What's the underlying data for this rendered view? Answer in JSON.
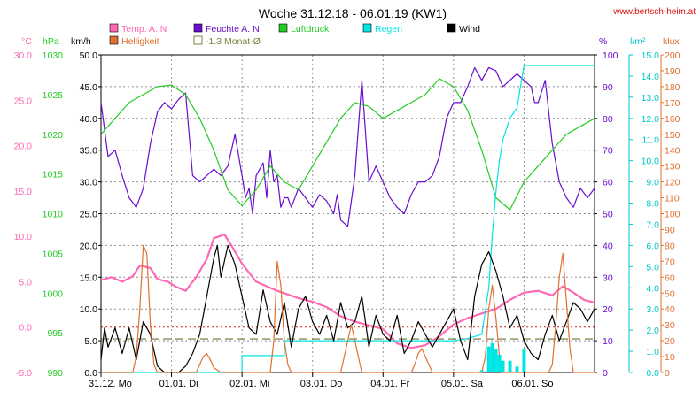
{
  "chart_data": {
    "type": "line",
    "title": "Woche 31.12.18 - 06.01.19 (KW1)",
    "source_label": "www.bertsch-heim.at",
    "x_days": [
      "31.12. Mo",
      "01.01. Di",
      "02.01. Mi",
      "03.01. Do",
      "04.01. Fr",
      "05.01. Sa",
      "06.01. So"
    ],
    "x_range_days": [
      0,
      7
    ],
    "legend": [
      {
        "name": "Temp. A. N",
        "color": "#ff69b4",
        "swatch": "fill"
      },
      {
        "name": "Feuchte A. N",
        "color": "#6a0dcd",
        "swatch": "fill"
      },
      {
        "name": "Luftdruck",
        "color": "#22cc22",
        "swatch": "fill"
      },
      {
        "name": "Regen",
        "color": "#00e5e5",
        "swatch": "fill"
      },
      {
        "name": "Wind",
        "color": "#000000",
        "swatch": "fill"
      },
      {
        "name": "Helligkeit",
        "color": "#e07030",
        "swatch": "fill"
      },
      {
        "name": "-1.3 Monat-Ø",
        "color": "#808040",
        "swatch": "outline"
      }
    ],
    "axes": {
      "temp": {
        "unit": "°C",
        "range": [
          -5,
          30
        ],
        "ticks": [
          "30.0",
          "25.0",
          "20.0",
          "15.0",
          "10.0",
          "5.0",
          "0.0",
          "-5.0"
        ],
        "color": "#ff69b4"
      },
      "pressure": {
        "unit": "hPa",
        "range": [
          990,
          1030
        ],
        "ticks": [
          "1030",
          "1025",
          "1020",
          "1015",
          "1010",
          "1005",
          "1000",
          "995",
          "990"
        ],
        "color": "#22cc22"
      },
      "wind": {
        "unit": "km/h",
        "range": [
          0,
          50
        ],
        "ticks": [
          "50.0",
          "45.0",
          "40.0",
          "35.0",
          "30.0",
          "25.0",
          "20.0",
          "15.0",
          "10.0",
          "5.0",
          "0.0"
        ],
        "color": "#000000"
      },
      "humidity": {
        "unit": "%",
        "range": [
          0,
          100
        ],
        "ticks": [
          "100",
          "90",
          "80",
          "70",
          "60",
          "50",
          "40",
          "30",
          "20",
          "10",
          "0"
        ],
        "color": "#6a0dcd"
      },
      "rain": {
        "unit": "l/m²",
        "range": [
          0,
          15
        ],
        "ticks": [
          "15.0",
          "14.0",
          "13.0",
          "12.0",
          "11.0",
          "10.0",
          "9.0",
          "8.0",
          "7.0",
          "6.0",
          "5.0",
          "4.0",
          "3.0",
          "2.0",
          "1.0",
          "0.0"
        ],
        "color": "#00c8c8"
      },
      "lux": {
        "unit": "klux",
        "range": [
          0,
          200
        ],
        "ticks": [
          "200",
          "190",
          "180",
          "170",
          "160",
          "150",
          "140",
          "130",
          "120",
          "110",
          "100",
          "90",
          "80",
          "70",
          "60",
          "50",
          "40",
          "30",
          "20",
          "10",
          "0"
        ],
        "color": "#e07030"
      }
    },
    "reference_lines": {
      "temp_zero": 0,
      "monthly_avg_temp": -1.3
    },
    "series": [
      {
        "name": "Temp. A. N",
        "axis": "temp",
        "color": "#ff69b4",
        "x": [
          0,
          0.15,
          0.3,
          0.45,
          0.55,
          0.7,
          0.8,
          0.95,
          1.05,
          1.2,
          1.35,
          1.5,
          1.6,
          1.75,
          1.85,
          2.0,
          2.2,
          2.5,
          2.8,
          3.0,
          3.2,
          3.4,
          3.6,
          3.8,
          4.0,
          4.2,
          4.4,
          4.6,
          4.8,
          5.0,
          5.2,
          5.4,
          5.6,
          5.8,
          6.0,
          6.2,
          6.4,
          6.55,
          6.7,
          6.85,
          7.0
        ],
        "y": [
          5.2,
          5.5,
          5.0,
          5.6,
          6.8,
          6.5,
          5.3,
          5.0,
          4.5,
          4.0,
          5.5,
          7.5,
          9.8,
          10.2,
          9.0,
          7.0,
          5.0,
          4.0,
          3.2,
          2.8,
          2.2,
          1.2,
          0.6,
          0.2,
          -0.2,
          -1.8,
          -2.3,
          -2.0,
          -1.0,
          0.3,
          1.0,
          1.5,
          2.0,
          3.0,
          3.8,
          4.0,
          3.5,
          4.5,
          3.8,
          3.0,
          2.7
        ]
      },
      {
        "name": "Feuchte A. N",
        "axis": "humidity",
        "color": "#6a0dcd",
        "x": [
          0,
          0.1,
          0.2,
          0.3,
          0.4,
          0.5,
          0.6,
          0.7,
          0.8,
          0.9,
          1.0,
          1.1,
          1.2,
          1.3,
          1.4,
          1.5,
          1.6,
          1.7,
          1.8,
          1.9,
          2.0,
          2.05,
          2.1,
          2.15,
          2.2,
          2.3,
          2.35,
          2.4,
          2.45,
          2.5,
          2.55,
          2.6,
          2.65,
          2.7,
          2.8,
          2.9,
          3.0,
          3.1,
          3.2,
          3.3,
          3.35,
          3.4,
          3.5,
          3.6,
          3.7,
          3.8,
          3.9,
          4.0,
          4.1,
          4.2,
          4.3,
          4.4,
          4.5,
          4.6,
          4.7,
          4.8,
          4.9,
          5.0,
          5.1,
          5.2,
          5.3,
          5.4,
          5.5,
          5.6,
          5.7,
          5.8,
          5.9,
          6.0,
          6.1,
          6.15,
          6.2,
          6.3,
          6.4,
          6.5,
          6.6,
          6.7,
          6.8,
          6.9,
          7.0
        ],
        "y": [
          85,
          68,
          70,
          62,
          55,
          52,
          58,
          72,
          82,
          85,
          83,
          86,
          88,
          62,
          60,
          62,
          64,
          62,
          65,
          75,
          62,
          55,
          58,
          50,
          62,
          66,
          55,
          70,
          60,
          62,
          52,
          55,
          55,
          52,
          58,
          55,
          52,
          56,
          54,
          50,
          56,
          48,
          46,
          62,
          92,
          60,
          65,
          60,
          55,
          52,
          50,
          56,
          60,
          60,
          62,
          68,
          80,
          85,
          85,
          90,
          96,
          92,
          96,
          95,
          90,
          92,
          94,
          92,
          90,
          85,
          85,
          92,
          72,
          60,
          55,
          52,
          58,
          55,
          58
        ]
      },
      {
        "name": "Luftdruck",
        "axis": "pressure",
        "color": "#22cc22",
        "x": [
          0,
          0.2,
          0.4,
          0.6,
          0.8,
          1.0,
          1.2,
          1.4,
          1.6,
          1.8,
          2.0,
          2.2,
          2.4,
          2.6,
          2.8,
          3.0,
          3.2,
          3.4,
          3.6,
          3.8,
          4.0,
          4.2,
          4.4,
          4.6,
          4.8,
          5.0,
          5.2,
          5.4,
          5.6,
          5.8,
          6.0,
          6.2,
          6.4,
          6.6,
          6.8,
          7.0
        ],
        "y": [
          1020,
          1022,
          1024,
          1025,
          1026,
          1026.2,
          1025,
          1022,
          1018,
          1013,
          1011,
          1013,
          1016,
          1014,
          1013,
          1016,
          1019,
          1022,
          1024,
          1023.5,
          1022,
          1023,
          1024,
          1025,
          1027,
          1026,
          1023,
          1018,
          1012,
          1010.5,
          1014,
          1016,
          1018,
          1020,
          1021,
          1022
        ]
      },
      {
        "name": "Regen",
        "axis": "rain",
        "color": "#00e5e5",
        "x": [
          0,
          2.0,
          2.0,
          2.6,
          2.6,
          4.4,
          4.8,
          5.0,
          5.2,
          5.4,
          5.5,
          5.55,
          5.6,
          5.65,
          5.7,
          5.8,
          5.9,
          6.0,
          6.2,
          6.4,
          7.0
        ],
        "y": [
          0,
          0,
          0.8,
          0.8,
          1.5,
          1.5,
          1.5,
          1.5,
          1.6,
          1.8,
          4.0,
          6.5,
          8.5,
          10.0,
          11.0,
          12.0,
          12.5,
          14.5,
          14.5,
          14.5,
          14.5
        ]
      },
      {
        "name": "Wind",
        "axis": "wind",
        "color": "#000000",
        "x": [
          0,
          0.05,
          0.1,
          0.2,
          0.3,
          0.4,
          0.5,
          0.6,
          0.7,
          0.8,
          0.9,
          1.0,
          1.1,
          1.2,
          1.3,
          1.4,
          1.5,
          1.6,
          1.65,
          1.7,
          1.8,
          1.9,
          2.0,
          2.1,
          2.2,
          2.3,
          2.4,
          2.5,
          2.6,
          2.7,
          2.8,
          2.9,
          3.0,
          3.1,
          3.2,
          3.3,
          3.4,
          3.5,
          3.6,
          3.7,
          3.8,
          3.9,
          4.0,
          4.1,
          4.2,
          4.3,
          4.4,
          4.5,
          4.6,
          4.7,
          4.8,
          4.9,
          5.0,
          5.1,
          5.2,
          5.3,
          5.4,
          5.5,
          5.6,
          5.7,
          5.8,
          5.9,
          6.0,
          6.1,
          6.2,
          6.3,
          6.4,
          6.5,
          6.6,
          6.7,
          6.8,
          6.9,
          7.0
        ],
        "y": [
          2,
          7,
          4,
          7,
          3,
          7,
          2,
          8,
          6,
          1,
          0,
          0,
          0,
          1,
          3,
          6,
          12,
          18,
          20,
          15,
          20,
          17,
          12,
          7,
          6,
          13,
          8,
          6,
          11,
          4,
          10,
          12,
          8,
          6,
          9,
          5,
          11,
          7,
          8,
          12,
          4,
          9,
          6,
          5,
          9,
          3,
          5,
          8,
          6,
          4,
          6,
          8,
          10,
          5,
          2,
          12,
          17,
          19,
          16,
          12,
          7,
          9,
          5,
          3,
          2,
          6,
          9,
          5,
          8,
          11,
          10,
          8,
          10
        ]
      },
      {
        "name": "Helligkeit",
        "axis": "lux",
        "color": "#e07030",
        "x": [
          0,
          0.45,
          0.5,
          0.55,
          0.6,
          0.65,
          0.7,
          0.75,
          0.8,
          1.0,
          1.35,
          1.4,
          1.45,
          1.5,
          1.55,
          1.6,
          1.7,
          2.4,
          2.45,
          2.5,
          2.55,
          2.6,
          2.65,
          2.7,
          3.4,
          3.45,
          3.5,
          3.55,
          3.6,
          3.65,
          3.7,
          4.4,
          4.45,
          4.5,
          4.55,
          4.6,
          4.65,
          4.7,
          5.4,
          5.45,
          5.5,
          5.55,
          5.6,
          5.65,
          5.7,
          6.35,
          6.4,
          6.45,
          6.5,
          6.55,
          6.6,
          6.65,
          6.7,
          7.0
        ],
        "y": [
          0,
          0,
          10,
          40,
          80,
          75,
          30,
          5,
          0,
          0,
          0,
          5,
          10,
          12,
          8,
          3,
          0,
          0,
          20,
          70,
          55,
          20,
          5,
          0,
          0,
          10,
          20,
          30,
          20,
          10,
          0,
          0,
          5,
          12,
          15,
          10,
          5,
          0,
          0,
          10,
          40,
          55,
          35,
          10,
          0,
          0,
          5,
          30,
          60,
          75,
          45,
          15,
          0,
          0
        ]
      }
    ]
  }
}
